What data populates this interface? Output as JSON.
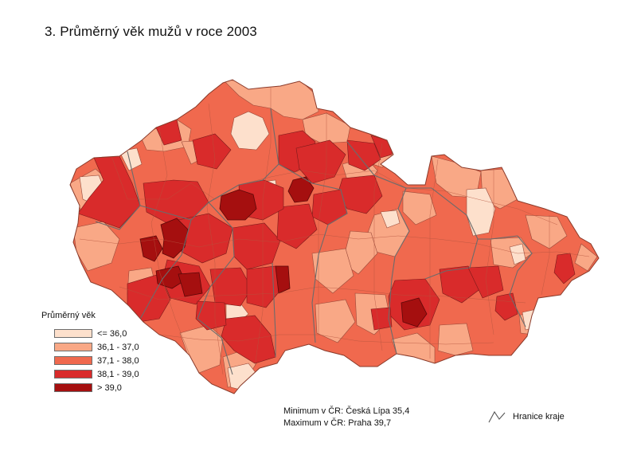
{
  "title": "3. Průměrný věk mužů v roce 2003",
  "legend": {
    "title": "Průměrný věk",
    "classes": [
      {
        "label": "<= 36,0",
        "color": "#fde0cc"
      },
      {
        "label": "36,1 - 37,0",
        "color": "#f9a886"
      },
      {
        "label": "37,1 - 38,0",
        "color": "#f0694e"
      },
      {
        "label": "38,1 - 39,0",
        "color": "#d92b2b"
      },
      {
        "label": "> 39,0",
        "color": "#a50f0f"
      }
    ]
  },
  "stats": {
    "min": "Minimum v ČR: Česká Lípa 35,4",
    "max": "Maximum v ČR: Praha 39,7"
  },
  "border_legend": {
    "label": "Hranice kraje",
    "icon": "region-border-line-icon"
  }
}
